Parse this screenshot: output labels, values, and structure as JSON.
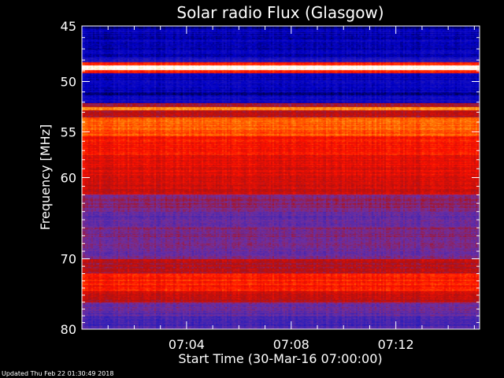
{
  "chart_data": {
    "type": "heatmap",
    "title": "Solar radio Flux (Glasgow)",
    "xlabel": "Start Time (30-Mar-16 07:00:00)",
    "ylabel": "Frequency [MHz]",
    "x_range_minutes": [
      0,
      15.2
    ],
    "ylim": [
      45,
      80
    ],
    "y_scale": "log",
    "x_ticks": [
      {
        "minute": 4,
        "label": "07:04"
      },
      {
        "minute": 8,
        "label": "07:08"
      },
      {
        "minute": 12,
        "label": "07:12"
      }
    ],
    "y_ticks": [
      {
        "value": 45,
        "label": "45"
      },
      {
        "value": 50,
        "label": "50"
      },
      {
        "value": 55,
        "label": "55"
      },
      {
        "value": 60,
        "label": "60"
      },
      {
        "value": 70,
        "label": "70"
      },
      {
        "value": 80,
        "label": "80"
      }
    ],
    "colormap": [
      "#000040",
      "#0000c8",
      "#3020b8",
      "#7030a0",
      "#b01010",
      "#ff1000",
      "#ff7000",
      "#ffd040",
      "#ffffff"
    ],
    "frequency_bands": [
      {
        "from": 45.0,
        "to": 45.3,
        "level": 0.05
      },
      {
        "from": 45.3,
        "to": 47.8,
        "level": 0.12
      },
      {
        "from": 47.8,
        "to": 48.2,
        "level": 0.2
      },
      {
        "from": 48.2,
        "to": 48.5,
        "level": 0.65
      },
      {
        "from": 48.5,
        "to": 48.9,
        "level": 1.0
      },
      {
        "from": 48.9,
        "to": 49.2,
        "level": 0.65
      },
      {
        "from": 49.2,
        "to": 51.0,
        "level": 0.14
      },
      {
        "from": 51.0,
        "to": 51.3,
        "level": 0.06
      },
      {
        "from": 51.3,
        "to": 52.1,
        "level": 0.16
      },
      {
        "from": 52.1,
        "to": 52.5,
        "level": 0.48
      },
      {
        "from": 52.5,
        "to": 52.8,
        "level": 0.82
      },
      {
        "from": 52.8,
        "to": 53.5,
        "level": 0.5
      },
      {
        "from": 53.5,
        "to": 55.5,
        "level": 0.72
      },
      {
        "from": 55.5,
        "to": 57.5,
        "level": 0.62
      },
      {
        "from": 57.5,
        "to": 60.0,
        "level": 0.58
      },
      {
        "from": 60.0,
        "to": 62.0,
        "level": 0.56
      },
      {
        "from": 62.0,
        "to": 64.0,
        "level": 0.42
      },
      {
        "from": 64.0,
        "to": 66.0,
        "level": 0.34
      },
      {
        "from": 66.0,
        "to": 68.0,
        "level": 0.4
      },
      {
        "from": 68.0,
        "to": 70.0,
        "level": 0.38
      },
      {
        "from": 70.0,
        "to": 72.0,
        "level": 0.5
      },
      {
        "from": 72.0,
        "to": 74.5,
        "level": 0.64
      },
      {
        "from": 74.5,
        "to": 76.0,
        "level": 0.52
      },
      {
        "from": 76.0,
        "to": 78.0,
        "level": 0.36
      },
      {
        "from": 78.0,
        "to": 80.0,
        "level": 0.3
      }
    ]
  },
  "footer": {
    "updated": "Updated Thu Feb 22 01:30:49 2018"
  }
}
